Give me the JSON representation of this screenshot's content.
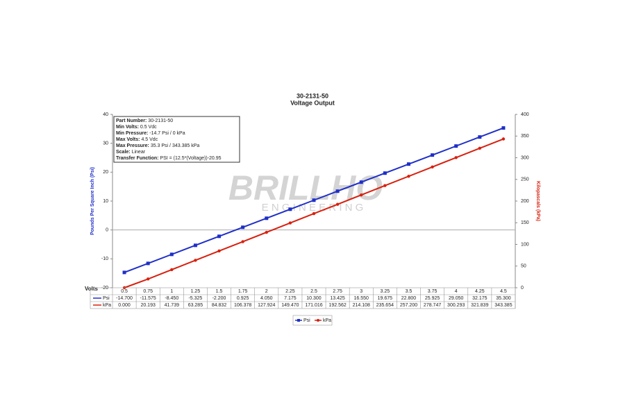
{
  "chart_data": {
    "type": "line",
    "title": "30-2131-50",
    "subtitle": "Voltage Output",
    "x_label": "Volts",
    "y_label": "Pounds Per Square Inch (Psi)",
    "y2_label": "Kilopascals (kPa)",
    "categories": [
      "0.5",
      "0.75",
      "1",
      "1.25",
      "1.5",
      "1.75",
      "2",
      "2.25",
      "2.5",
      "2.75",
      "3",
      "3.25",
      "3.5",
      "3.75",
      "4",
      "4.25",
      "4.5"
    ],
    "series": [
      {
        "name": "Psi",
        "color": "#1f2fc8",
        "marker": "square",
        "values": [
          -14.7,
          -11.575,
          -8.45,
          -5.325,
          -2.2,
          0.925,
          4.05,
          7.175,
          10.3,
          13.425,
          16.55,
          19.675,
          22.8,
          25.925,
          29.05,
          32.175,
          35.3
        ],
        "value_labels": [
          "-14.700",
          "-11.575",
          "-8.450",
          "-5.325",
          "-2.200",
          "0.925",
          "4.050",
          "7.175",
          "10.300",
          "13.425",
          "16.550",
          "19.675",
          "22.800",
          "25.925",
          "29.050",
          "32.175",
          "35.300"
        ]
      },
      {
        "name": "kPa",
        "color": "#d8200e",
        "marker": "circle",
        "axis": "y2",
        "values": [
          0,
          20.193,
          41.739,
          63.285,
          84.832,
          106.378,
          127.924,
          149.47,
          171.016,
          192.562,
          214.108,
          235.654,
          257.2,
          278.747,
          300.293,
          321.839,
          343.385
        ],
        "value_labels": [
          "0.000",
          "20.193",
          "41.739",
          "63.285",
          "84.832",
          "106.378",
          "127.924",
          "149.470",
          "171.016",
          "192.562",
          "214.108",
          "235.654",
          "257.200",
          "278.747",
          "300.293",
          "321.839",
          "343.385"
        ]
      }
    ],
    "ylim": [
      -20,
      40
    ],
    "yticks": [
      -20,
      -10,
      0,
      10,
      20,
      30,
      40
    ],
    "y2lim": [
      0,
      400
    ],
    "y2ticks": [
      0,
      50,
      100,
      150,
      200,
      250,
      300,
      350,
      400
    ],
    "info_box": [
      {
        "label": "Part Number:",
        "text": "30-2131-50"
      },
      {
        "label": "Min Volts:",
        "text": "0.5 Vdc"
      },
      {
        "label": "Min Pressure:",
        "text": "-14.7 Psi / 0 kPa"
      },
      {
        "label": "Max Volts:",
        "text": "4.5 Vdc"
      },
      {
        "label": "Max Pressure:",
        "text": "35.3 Psi / 343.385 kPa"
      },
      {
        "label": "Scale:",
        "text": "Linear"
      },
      {
        "label": "Transfer Function:",
        "text": "PSI = (12.5*(Voltage))-20.95"
      }
    ],
    "watermark": {
      "brand": "BRILLHO",
      "tagline": "E N G I N E E R I N G"
    },
    "legend": "bottom"
  }
}
